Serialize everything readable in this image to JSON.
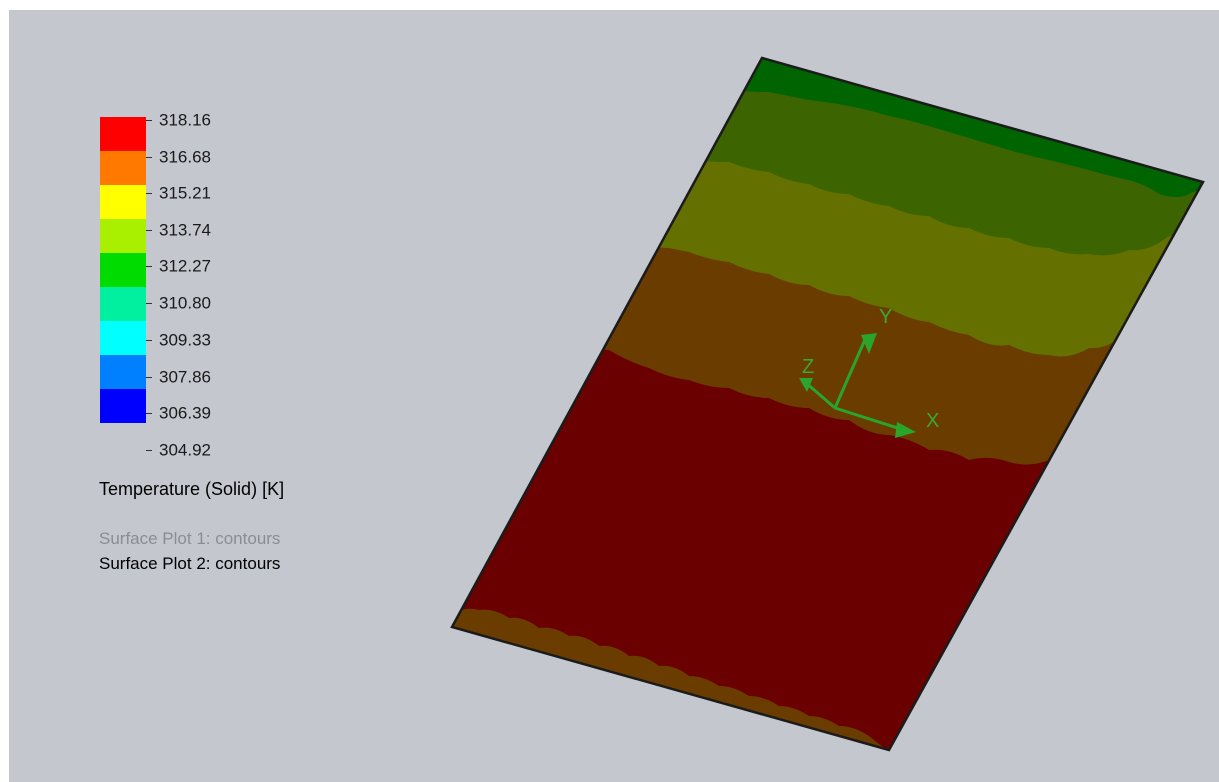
{
  "legend": {
    "ticks": [
      "318.16",
      "316.68",
      "315.21",
      "313.74",
      "312.27",
      "310.80",
      "309.33",
      "307.86",
      "306.39",
      "304.92"
    ],
    "bands": [
      {
        "color": "#ff0000"
      },
      {
        "color": "#ff7800"
      },
      {
        "color": "#ffff00"
      },
      {
        "color": "#a8f000"
      },
      {
        "color": "#00dc00"
      },
      {
        "color": "#00f0a0"
      },
      {
        "color": "#00ffff"
      },
      {
        "color": "#0080ff"
      },
      {
        "color": "#0000ff"
      }
    ],
    "quantity": "Temperature (Solid) [K]",
    "plots": {
      "plot1": "Surface Plot 1: contours",
      "plot2": "Surface Plot 2: contours"
    }
  },
  "triad": {
    "x": "X",
    "y": "Y",
    "z": "Z",
    "color": "#2aa52a"
  },
  "surface": {
    "colors": {
      "top_band": "#006400",
      "band2": "#3c6400",
      "band3": "#647000",
      "band4": "#6a3c00",
      "main": "#6a0000",
      "bottom_patch": "#6a3c00"
    }
  }
}
